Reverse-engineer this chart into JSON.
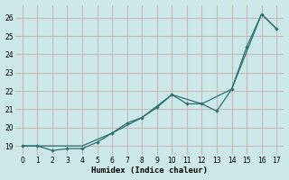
{
  "xlabel": "Humidex (Indice chaleur)",
  "background_color": "#cce8e8",
  "grid_color": "#c8b8b8",
  "line_color": "#2a7070",
  "xlim": [
    -0.5,
    17.5
  ],
  "ylim": [
    18.5,
    26.7
  ],
  "yticks": [
    19,
    20,
    21,
    22,
    23,
    24,
    25,
    26
  ],
  "xticks": [
    0,
    1,
    2,
    3,
    4,
    5,
    6,
    7,
    8,
    9,
    10,
    11,
    12,
    13,
    14,
    15,
    16,
    17
  ],
  "line1_x": [
    0,
    1,
    2,
    3,
    4,
    5,
    6,
    7,
    8,
    9,
    10,
    11,
    12,
    13,
    14,
    15,
    16,
    17
  ],
  "line1_y": [
    19.0,
    19.0,
    18.75,
    18.85,
    18.85,
    19.2,
    19.7,
    20.25,
    20.55,
    21.1,
    21.8,
    21.3,
    21.3,
    20.9,
    22.1,
    24.4,
    26.2,
    25.4
  ],
  "line2_x": [
    0,
    2,
    4,
    6,
    8,
    10,
    12,
    14,
    16,
    17
  ],
  "line2_y": [
    19.0,
    19.0,
    19.0,
    19.7,
    20.55,
    21.8,
    21.3,
    22.1,
    26.2,
    25.4
  ]
}
